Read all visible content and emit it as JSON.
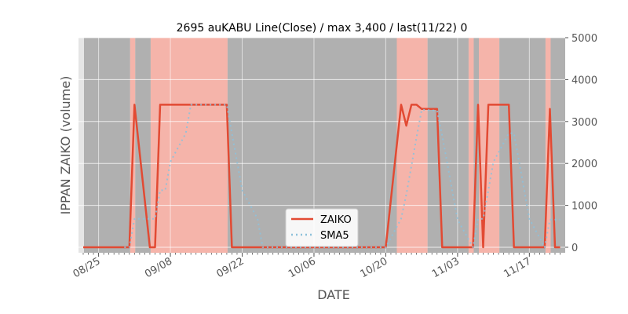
{
  "chart_data": {
    "type": "line",
    "title": "2695 auKABU Line(Close) / max 3,400 / last(11/22) 0",
    "xlabel": "DATE",
    "ylabel": "IPPAN ZAIKO (volume)",
    "ylim": [
      0,
      5000
    ],
    "y_ticks": [
      0,
      1000,
      2000,
      3000,
      4000,
      5000
    ],
    "y_tick_labels": [
      "0",
      "1000",
      "2000",
      "3000",
      "4000",
      "5000"
    ],
    "y_axis_side": "right",
    "x_start_date": "2023-08-22",
    "x_end_date": "2023-11-22",
    "x_ticks": [
      "2023-08-25",
      "2023-09-08",
      "2023-09-22",
      "2023-10-06",
      "2023-10-20",
      "2023-11-03",
      "2023-11-17"
    ],
    "x_tick_labels": [
      "08/25",
      "09/08",
      "09/22",
      "10/06",
      "10/20",
      "11/03",
      "11/17"
    ],
    "grid": true,
    "legend_position": "bottom-center",
    "series": [
      {
        "name": "ZAIKO",
        "color": "#e24a33",
        "style": "solid",
        "points": [
          [
            "2023-08-22",
            0
          ],
          [
            "2023-08-23",
            0
          ],
          [
            "2023-08-24",
            0
          ],
          [
            "2023-08-25",
            0
          ],
          [
            "2023-08-28",
            0
          ],
          [
            "2023-08-29",
            0
          ],
          [
            "2023-08-30",
            0
          ],
          [
            "2023-08-31",
            0
          ],
          [
            "2023-09-01",
            3400
          ],
          [
            "2023-09-04",
            0
          ],
          [
            "2023-09-05",
            0
          ],
          [
            "2023-09-06",
            3400
          ],
          [
            "2023-09-07",
            3400
          ],
          [
            "2023-09-08",
            3400
          ],
          [
            "2023-09-11",
            3400
          ],
          [
            "2023-09-12",
            3400
          ],
          [
            "2023-09-13",
            3400
          ],
          [
            "2023-09-14",
            3400
          ],
          [
            "2023-09-15",
            3400
          ],
          [
            "2023-09-18",
            3400
          ],
          [
            "2023-09-19",
            3400
          ],
          [
            "2023-09-20",
            0
          ],
          [
            "2023-09-21",
            0
          ],
          [
            "2023-09-22",
            0
          ],
          [
            "2023-09-25",
            0
          ],
          [
            "2023-09-26",
            0
          ],
          [
            "2023-09-27",
            0
          ],
          [
            "2023-09-28",
            0
          ],
          [
            "2023-09-29",
            0
          ],
          [
            "2023-10-02",
            0
          ],
          [
            "2023-10-03",
            0
          ],
          [
            "2023-10-04",
            0
          ],
          [
            "2023-10-05",
            0
          ],
          [
            "2023-10-06",
            0
          ],
          [
            "2023-10-09",
            0
          ],
          [
            "2023-10-10",
            0
          ],
          [
            "2023-10-11",
            0
          ],
          [
            "2023-10-12",
            0
          ],
          [
            "2023-10-13",
            0
          ],
          [
            "2023-10-16",
            0
          ],
          [
            "2023-10-17",
            0
          ],
          [
            "2023-10-18",
            0
          ],
          [
            "2023-10-19",
            0
          ],
          [
            "2023-10-20",
            0
          ],
          [
            "2023-10-23",
            3400
          ],
          [
            "2023-10-24",
            2900
          ],
          [
            "2023-10-25",
            3400
          ],
          [
            "2023-10-26",
            3400
          ],
          [
            "2023-10-27",
            3300
          ],
          [
            "2023-10-30",
            3300
          ],
          [
            "2023-10-31",
            0
          ],
          [
            "2023-11-01",
            0
          ],
          [
            "2023-11-02",
            0
          ],
          [
            "2023-11-03",
            0
          ],
          [
            "2023-11-06",
            0
          ],
          [
            "2023-11-07",
            3400
          ],
          [
            "2023-11-08",
            0
          ],
          [
            "2023-11-09",
            3400
          ],
          [
            "2023-11-10",
            3400
          ],
          [
            "2023-11-13",
            3400
          ],
          [
            "2023-11-14",
            0
          ],
          [
            "2023-11-15",
            0
          ],
          [
            "2023-11-16",
            0
          ],
          [
            "2023-11-17",
            0
          ],
          [
            "2023-11-20",
            0
          ],
          [
            "2023-11-21",
            3300
          ],
          [
            "2023-11-22",
            0
          ],
          [
            "2023-11-23",
            0
          ]
        ]
      },
      {
        "name": "SMA5",
        "color": "#8ec1da",
        "style": "dotted",
        "points": [
          [
            "2023-08-30",
            0
          ],
          [
            "2023-08-31",
            0
          ],
          [
            "2023-09-01",
            680
          ],
          [
            "2023-09-04",
            680
          ],
          [
            "2023-09-05",
            680
          ],
          [
            "2023-09-06",
            1360
          ],
          [
            "2023-09-07",
            1360
          ],
          [
            "2023-09-08",
            2040
          ],
          [
            "2023-09-11",
            2720
          ],
          [
            "2023-09-12",
            3400
          ],
          [
            "2023-09-13",
            3400
          ],
          [
            "2023-09-14",
            3400
          ],
          [
            "2023-09-15",
            3400
          ],
          [
            "2023-09-18",
            3400
          ],
          [
            "2023-09-19",
            3400
          ],
          [
            "2023-09-20",
            2720
          ],
          [
            "2023-09-21",
            2040
          ],
          [
            "2023-09-22",
            1360
          ],
          [
            "2023-09-25",
            680
          ],
          [
            "2023-09-26",
            0
          ],
          [
            "2023-09-27",
            0
          ],
          [
            "2023-09-28",
            0
          ],
          [
            "2023-09-29",
            0
          ],
          [
            "2023-10-02",
            0
          ],
          [
            "2023-10-03",
            0
          ],
          [
            "2023-10-04",
            0
          ],
          [
            "2023-10-05",
            0
          ],
          [
            "2023-10-06",
            0
          ],
          [
            "2023-10-09",
            0
          ],
          [
            "2023-10-10",
            0
          ],
          [
            "2023-10-11",
            0
          ],
          [
            "2023-10-12",
            0
          ],
          [
            "2023-10-13",
            0
          ],
          [
            "2023-10-16",
            0
          ],
          [
            "2023-10-17",
            0
          ],
          [
            "2023-10-18",
            0
          ],
          [
            "2023-10-19",
            0
          ],
          [
            "2023-10-20",
            0
          ],
          [
            "2023-10-23",
            680
          ],
          [
            "2023-10-24",
            1260
          ],
          [
            "2023-10-25",
            1940
          ],
          [
            "2023-10-26",
            2620
          ],
          [
            "2023-10-27",
            3280
          ],
          [
            "2023-10-30",
            3260
          ],
          [
            "2023-10-31",
            2660
          ],
          [
            "2023-11-01",
            2000
          ],
          [
            "2023-11-02",
            1320
          ],
          [
            "2023-11-03",
            660
          ],
          [
            "2023-11-06",
            0
          ],
          [
            "2023-11-07",
            680
          ],
          [
            "2023-11-08",
            680
          ],
          [
            "2023-11-09",
            1360
          ],
          [
            "2023-11-10",
            2040
          ],
          [
            "2023-11-13",
            2720
          ],
          [
            "2023-11-14",
            2720
          ],
          [
            "2023-11-15",
            2040
          ],
          [
            "2023-11-16",
            1360
          ],
          [
            "2023-11-17",
            680
          ],
          [
            "2023-11-20",
            0
          ],
          [
            "2023-11-21",
            660
          ],
          [
            "2023-11-22",
            660
          ],
          [
            "2023-11-23",
            660
          ]
        ]
      }
    ],
    "background_bands": [
      {
        "start": "2023-08-22",
        "end": "2023-08-31",
        "color": "#b0b0b0"
      },
      {
        "start": "2023-08-31",
        "end": "2023-09-01",
        "color": "#f5b4aa"
      },
      {
        "start": "2023-09-01",
        "end": "2023-09-04",
        "color": "#b0b0b0"
      },
      {
        "start": "2023-09-04",
        "end": "2023-09-19",
        "color": "#f5b4aa"
      },
      {
        "start": "2023-09-19",
        "end": "2023-10-22",
        "color": "#b0b0b0"
      },
      {
        "start": "2023-10-22",
        "end": "2023-10-28",
        "color": "#f5b4aa"
      },
      {
        "start": "2023-10-28",
        "end": "2023-11-05",
        "color": "#b0b0b0"
      },
      {
        "start": "2023-11-05",
        "end": "2023-11-06",
        "color": "#f5b4aa"
      },
      {
        "start": "2023-11-06",
        "end": "2023-11-07",
        "color": "#b0b0b0"
      },
      {
        "start": "2023-11-07",
        "end": "2023-11-11",
        "color": "#f5b4aa"
      },
      {
        "start": "2023-11-11",
        "end": "2023-11-20",
        "color": "#b0b0b0"
      },
      {
        "start": "2023-11-20",
        "end": "2023-11-21",
        "color": "#f5b4aa"
      },
      {
        "start": "2023-11-21",
        "end": "2023-11-24",
        "color": "#b0b0b0"
      }
    ],
    "legend": [
      {
        "name": "ZAIKO",
        "color": "#e24a33",
        "style": "solid"
      },
      {
        "name": "SMA5",
        "color": "#8ec1da",
        "style": "dotted"
      }
    ]
  }
}
